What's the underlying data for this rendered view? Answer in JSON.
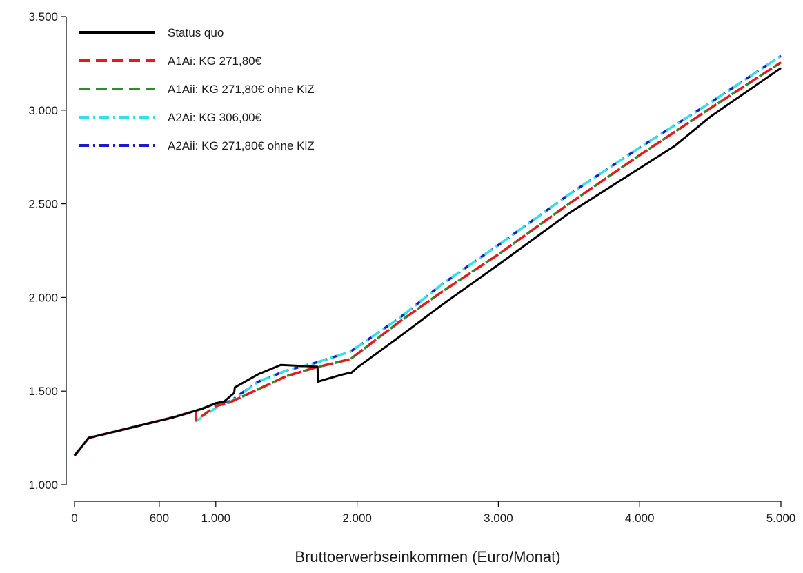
{
  "chart_data": {
    "type": "line",
    "title": "",
    "xlabel": "Bruttoerwerbseinkommen (Euro/Monat)",
    "ylabel": "",
    "xlim": [
      0,
      5000
    ],
    "ylim": [
      1000,
      3500
    ],
    "x_ticks": [
      {
        "value": 0,
        "label": "0"
      },
      {
        "value": 600,
        "label": "600"
      },
      {
        "value": 1000,
        "label": "1.000"
      },
      {
        "value": 2000,
        "label": "2.000"
      },
      {
        "value": 3000,
        "label": "3.000"
      },
      {
        "value": 4000,
        "label": "4.000"
      },
      {
        "value": 5000,
        "label": "5.000"
      }
    ],
    "y_ticks": [
      {
        "value": 1000,
        "label": "1.000"
      },
      {
        "value": 1500,
        "label": "1.500"
      },
      {
        "value": 2000,
        "label": "2.000"
      },
      {
        "value": 2500,
        "label": "2.500"
      },
      {
        "value": 3000,
        "label": "3.000"
      },
      {
        "value": 3500,
        "label": "3.500"
      }
    ],
    "grid": false,
    "legend_position": "top-left",
    "series": [
      {
        "name": "Status quo",
        "color": "#000000",
        "style": "solid",
        "points": [
          [
            0,
            1155
          ],
          [
            100,
            1250
          ],
          [
            400,
            1305
          ],
          [
            700,
            1360
          ],
          [
            900,
            1405
          ],
          [
            1000,
            1435
          ],
          [
            1060,
            1445
          ],
          [
            1130,
            1490
          ],
          [
            1135,
            1520
          ],
          [
            1300,
            1590
          ],
          [
            1460,
            1640
          ],
          [
            1720,
            1630
          ],
          [
            1722,
            1550
          ],
          [
            1880,
            1585
          ],
          [
            1950,
            1598
          ],
          [
            1955,
            1595
          ],
          [
            2000,
            1625
          ],
          [
            2300,
            1790
          ],
          [
            2600,
            1960
          ],
          [
            3000,
            2175
          ],
          [
            3500,
            2450
          ],
          [
            4000,
            2690
          ],
          [
            4250,
            2810
          ],
          [
            4500,
            2965
          ],
          [
            5000,
            3225
          ]
        ]
      },
      {
        "name": "A1Ai: KG 271,80€",
        "color": "#e41a1c",
        "style": "dashed",
        "points": [
          [
            0,
            1155
          ],
          [
            100,
            1250
          ],
          [
            400,
            1305
          ],
          [
            700,
            1360
          ],
          [
            860,
            1395
          ],
          [
            862,
            1345
          ],
          [
            1000,
            1420
          ],
          [
            1100,
            1440
          ],
          [
            1300,
            1510
          ],
          [
            1500,
            1580
          ],
          [
            1700,
            1625
          ],
          [
            1950,
            1670
          ],
          [
            1955,
            1672
          ],
          [
            2300,
            1870
          ],
          [
            2600,
            2030
          ],
          [
            3000,
            2230
          ],
          [
            3500,
            2500
          ],
          [
            4000,
            2760
          ],
          [
            4500,
            3010
          ],
          [
            5000,
            3255
          ]
        ]
      },
      {
        "name": "A1Aii: KG 271,80€ ohne KiZ",
        "color": "#2e8b2e",
        "style": "dashed",
        "points": [
          [
            0,
            1155
          ],
          [
            100,
            1250
          ],
          [
            400,
            1305
          ],
          [
            700,
            1360
          ],
          [
            900,
            1405
          ],
          [
            1000,
            1435
          ],
          [
            1100,
            1440
          ],
          [
            1300,
            1510
          ],
          [
            1500,
            1580
          ],
          [
            1700,
            1625
          ],
          [
            1950,
            1670
          ],
          [
            1955,
            1672
          ],
          [
            2300,
            1870
          ],
          [
            2600,
            2030
          ],
          [
            3000,
            2230
          ],
          [
            3500,
            2500
          ],
          [
            4000,
            2760
          ],
          [
            4500,
            3010
          ],
          [
            5000,
            3255
          ]
        ]
      },
      {
        "name": "A2Ai: KG 306,00€",
        "color": "#33e0e8",
        "style": "dashdot",
        "points": [
          [
            0,
            1155
          ],
          [
            100,
            1250
          ],
          [
            400,
            1305
          ],
          [
            700,
            1360
          ],
          [
            860,
            1395
          ],
          [
            862,
            1340
          ],
          [
            1000,
            1410
          ],
          [
            1100,
            1440
          ],
          [
            1300,
            1550
          ],
          [
            1500,
            1610
          ],
          [
            1700,
            1650
          ],
          [
            1950,
            1710
          ],
          [
            1955,
            1712
          ],
          [
            2300,
            1890
          ],
          [
            2600,
            2070
          ],
          [
            3000,
            2280
          ],
          [
            3500,
            2550
          ],
          [
            4000,
            2800
          ],
          [
            4500,
            3040
          ],
          [
            5000,
            3290
          ]
        ]
      },
      {
        "name": "A2Aii: KG 271,80€ ohne KiZ",
        "color": "#1a1acc",
        "style": "dashdot",
        "points": [
          [
            0,
            1155
          ],
          [
            100,
            1250
          ],
          [
            400,
            1305
          ],
          [
            700,
            1360
          ],
          [
            900,
            1405
          ],
          [
            1000,
            1435
          ],
          [
            1100,
            1445
          ],
          [
            1300,
            1550
          ],
          [
            1500,
            1610
          ],
          [
            1700,
            1650
          ],
          [
            1950,
            1710
          ],
          [
            1955,
            1712
          ],
          [
            2300,
            1890
          ],
          [
            2600,
            2070
          ],
          [
            3000,
            2280
          ],
          [
            3500,
            2550
          ],
          [
            4000,
            2800
          ],
          [
            4500,
            3040
          ],
          [
            5000,
            3290
          ]
        ]
      }
    ]
  }
}
